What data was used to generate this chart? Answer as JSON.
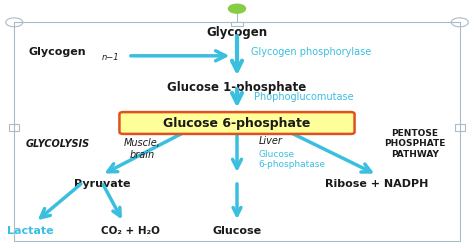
{
  "bg_color": "#ffffff",
  "arrow_color": "#3bbfdf",
  "text_color_black": "#1a1a1a",
  "text_color_cyan": "#3bbfdf",
  "box_fill": "#ffff99",
  "box_edge": "#e05020",
  "border_color": "#aabbc8",
  "green_circle": "#88cc44",
  "title_top": "Glycogen",
  "label_glycogen_n1": "Glycogen",
  "subscript_n1": "n−1",
  "label_glucose1p": "Glucose 1-phosphate",
  "label_glucose6p": "Glucose 6-phosphate",
  "label_glycogen_phosphorylase": "Glycogen phosphorylase",
  "label_phosphoglucomutase": "Phophoglucomutase",
  "label_glycolysis": "GLYCOLYSIS",
  "label_muscle_brain": "Muscle,\nbrain",
  "label_liver": "Liver",
  "label_glucose6pase": "Glucose\n6-phosphatase",
  "label_pentose": "PENTOSE\nPHOSPHATE\nPATHWAY",
  "label_pyruvate": "Pyruvate",
  "label_ribose": "Ribose + NADPH",
  "label_lactate": "Lactate",
  "label_co2": "CO₂ + H₂O",
  "label_glucose_out": "Glucose"
}
